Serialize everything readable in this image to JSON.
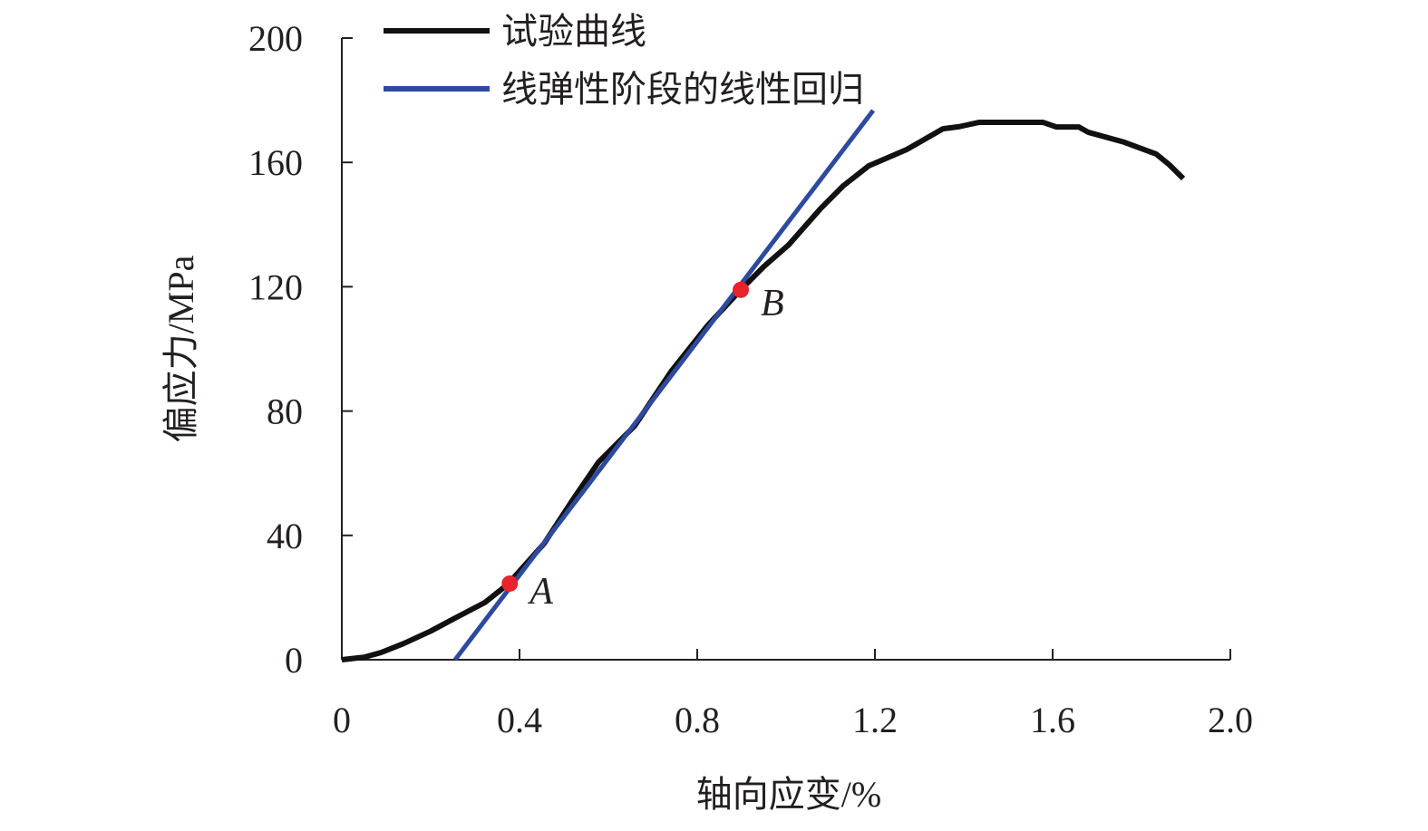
{
  "chart_data": {
    "type": "line",
    "title": "",
    "xlabel": "轴向应变/%",
    "ylabel": "偏应力/MPa",
    "xlim": [
      0,
      2.0
    ],
    "ylim": [
      0,
      200
    ],
    "xticks": [
      "0",
      "0.4",
      "0.8",
      "1.2",
      "1.6",
      "2.0"
    ],
    "yticks": [
      "0",
      "40",
      "80",
      "120",
      "160",
      "200"
    ],
    "grid": false,
    "legend_position": "top",
    "series": [
      {
        "name": "试验曲线",
        "color": "#111111",
        "x": [
          0,
          0.05,
          0.088,
          0.139,
          0.2,
          0.251,
          0.322,
          0.373,
          0.455,
          0.52,
          0.578,
          0.659,
          0.741,
          0.822,
          0.898,
          0.95,
          1.006,
          1.078,
          1.129,
          1.186,
          1.271,
          1.353,
          1.39,
          1.435,
          1.578,
          1.608,
          1.659,
          1.68,
          1.761,
          1.833,
          1.863,
          1.894
        ],
        "y": [
          0,
          0.8,
          2.3,
          5.2,
          9.2,
          13.1,
          18.4,
          24.2,
          37.3,
          51.5,
          63.6,
          75.2,
          92.7,
          107.3,
          119,
          126.5,
          133.5,
          145.2,
          152.5,
          158.9,
          164.1,
          170.8,
          171.5,
          172.9,
          172.9,
          171.4,
          171.4,
          169.7,
          166.5,
          162.7,
          159.2,
          154.8
        ]
      },
      {
        "name": "线弹性阶段的线性回归",
        "color": "#2e4a9e",
        "x": [
          0.255,
          1.196
        ],
        "y": [
          0,
          176.7
        ]
      }
    ],
    "annotations": [
      {
        "label": "A",
        "x": 0.378,
        "y": 24.5,
        "color": "#e8232a"
      },
      {
        "label": "B",
        "x": 0.898,
        "y": 119,
        "color": "#e8232a"
      }
    ]
  }
}
